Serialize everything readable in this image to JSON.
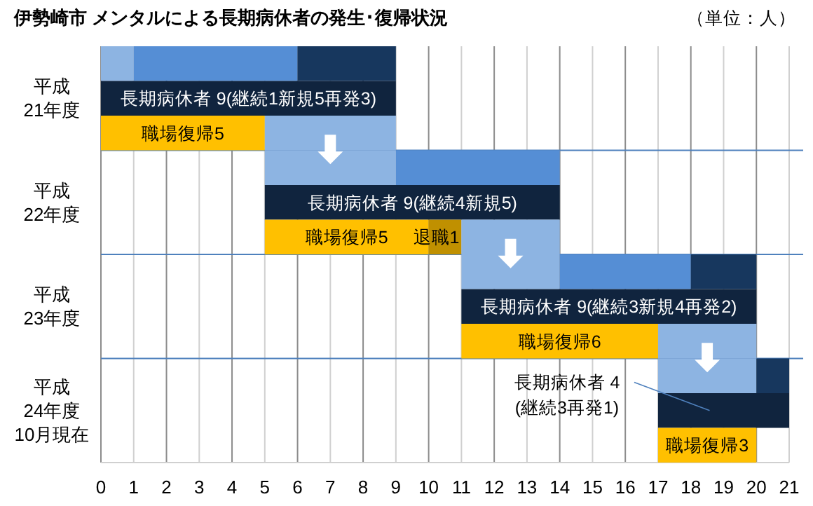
{
  "chart_data": {
    "type": "bar",
    "orientation": "horizontal",
    "title": "伊勢崎市  メンタルによる長期病休者の発生･復帰状況",
    "annotations": [
      "（単位：人）"
    ],
    "categories": [
      null,
      "平成\n21年度",
      null,
      null,
      "平成\n22年度",
      null,
      null,
      "平成\n23年度",
      null,
      null,
      "平成\n24年度\n10月現在",
      null
    ],
    "xlim": [
      0,
      21
    ],
    "xticks": [
      0,
      1,
      2,
      3,
      4,
      5,
      6,
      7,
      8,
      9,
      10,
      11,
      12,
      13,
      14,
      15,
      16,
      17,
      18,
      19,
      20,
      21
    ],
    "grid": "x",
    "series": [
      {
        "color": "#8db4e2",
        "values": [
          1,
          null,
          null,
          4,
          null,
          null,
          3,
          null,
          null,
          3,
          null,
          null
        ],
        "base": [
          0,
          null,
          null,
          5,
          null,
          null,
          11,
          null,
          null,
          17,
          null,
          null
        ]
      },
      {
        "color": "#558ed5",
        "values": [
          5,
          null,
          null,
          5,
          null,
          null,
          4,
          null,
          null,
          null,
          null,
          null
        ],
        "base": [
          1,
          null,
          null,
          9,
          null,
          null,
          14,
          null,
          null,
          null,
          null,
          null
        ]
      },
      {
        "color": "#17375e",
        "values": [
          3,
          null,
          null,
          null,
          null,
          null,
          2,
          null,
          null,
          1,
          null,
          null
        ],
        "base": [
          6,
          null,
          null,
          null,
          null,
          null,
          18,
          null,
          null,
          20,
          null,
          null
        ]
      },
      {
        "color": "#10243e",
        "values": [
          null,
          9,
          null,
          null,
          9,
          null,
          null,
          9,
          null,
          null,
          4,
          null
        ],
        "base": [
          null,
          0,
          null,
          null,
          5,
          null,
          null,
          11,
          null,
          null,
          17,
          null
        ],
        "value_labels": [
          null,
          "長期病休者 9(継続1新規5再発3)",
          null,
          null,
          "長期病休者 9(継続4新規5)",
          null,
          null,
          "長期病休者 9(継続3新規4再発2)",
          null,
          null,
          "長期病休者 4\n(継続3再発1)",
          null
        ]
      },
      {
        "color": "#ffc000",
        "values": [
          null,
          null,
          5,
          null,
          null,
          5,
          null,
          null,
          6,
          null,
          null,
          3
        ],
        "base": [
          null,
          null,
          0,
          null,
          null,
          5,
          null,
          null,
          11,
          null,
          null,
          17
        ],
        "value_labels": [
          null,
          null,
          "職場復帰5",
          null,
          null,
          "職場復帰5",
          null,
          null,
          "職場復帰6",
          null,
          null,
          "職場復帰3"
        ]
      },
      {
        "color": "#c09000",
        "values": [
          null,
          null,
          null,
          null,
          null,
          1,
          null,
          null,
          null,
          null,
          null,
          null
        ],
        "base": [
          null,
          null,
          null,
          null,
          null,
          10,
          null,
          null,
          null,
          null,
          null,
          null
        ],
        "value_labels": [
          null,
          null,
          null,
          null,
          null,
          "退職1",
          null,
          null,
          null,
          null,
          null,
          null
        ]
      },
      {
        "color": "#8db4e2",
        "values": [
          null,
          null,
          4,
          null,
          null,
          3,
          null,
          null,
          3,
          null,
          null,
          null
        ],
        "base": [
          null,
          null,
          5,
          null,
          null,
          11,
          null,
          null,
          17,
          null,
          null,
          null
        ]
      }
    ]
  }
}
